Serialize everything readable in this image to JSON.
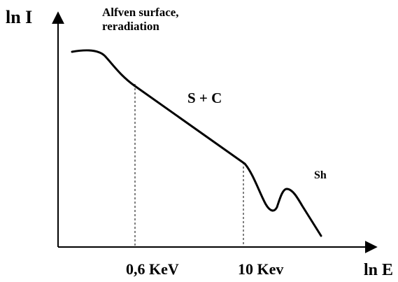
{
  "figure": {
    "y_axis_label": "ln I",
    "x_axis_label": "ln E",
    "annotation": "Alfven surface,\nreradiation",
    "region_labels": {
      "sc": "S + C",
      "sh": "Sh"
    },
    "ticks": {
      "first": "0,6 KeV",
      "second": "10 Kev"
    },
    "colors": {
      "line": "#000000",
      "background": "#ffffff"
    }
  }
}
